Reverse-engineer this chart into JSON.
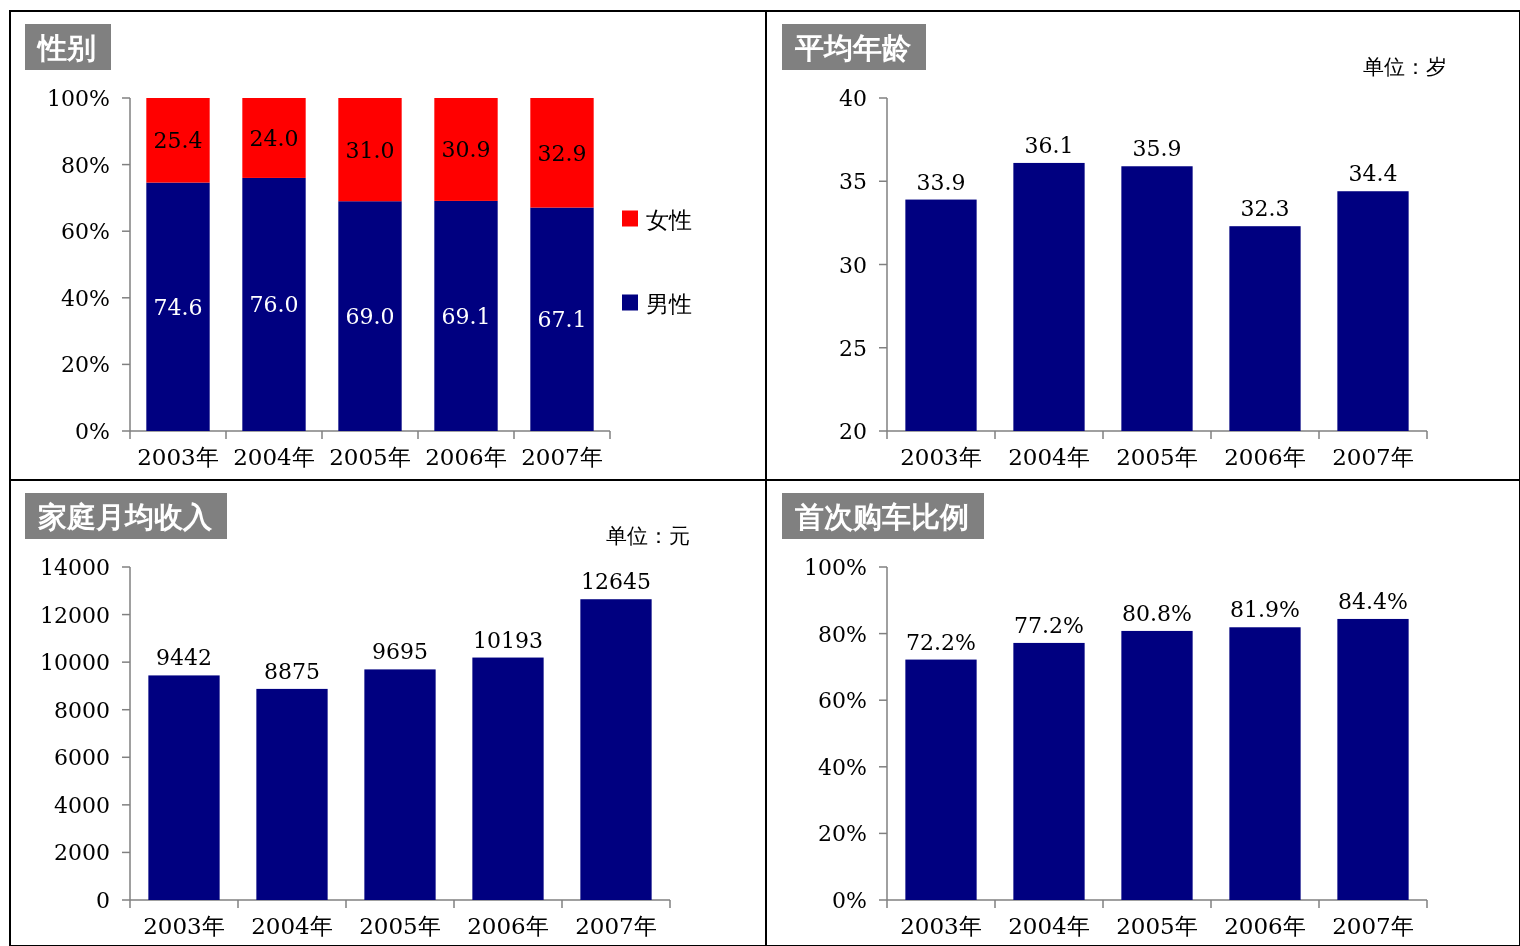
{
  "chart_data": [
    {
      "type": "bar",
      "title": "性别",
      "categories": [
        "2003年",
        "2004年",
        "2005年",
        "2006年",
        "2007年"
      ],
      "stacked": true,
      "legend": "right",
      "series": [
        {
          "name": "男性",
          "color": "#000080",
          "values": [
            74.6,
            76.0,
            69.0,
            69.1,
            67.1
          ],
          "value_labels": [
            "74.6",
            "76.0",
            "69.0",
            "69.1",
            "67.1"
          ]
        },
        {
          "name": "女性",
          "color": "#ff0000",
          "values": [
            25.4,
            24.0,
            31.0,
            30.9,
            32.9
          ],
          "value_labels": [
            "25.4",
            "24.0",
            "31.0",
            "30.9",
            "32.9"
          ]
        }
      ],
      "ylim": [
        0,
        100
      ],
      "yticks": [
        {
          "value": 0,
          "label": "0%"
        },
        {
          "value": 20,
          "label": "20%"
        },
        {
          "value": 40,
          "label": "40%"
        },
        {
          "value": 60,
          "label": "60%"
        },
        {
          "value": 80,
          "label": "80%"
        },
        {
          "value": 100,
          "label": "100%"
        }
      ]
    },
    {
      "type": "bar",
      "title": "平均年龄",
      "annotations": [
        "单位：岁"
      ],
      "categories": [
        "2003年",
        "2004年",
        "2005年",
        "2006年",
        "2007年"
      ],
      "color": "#000080",
      "values": [
        33.9,
        36.1,
        35.9,
        32.3,
        34.4
      ],
      "ylim": [
        20,
        40
      ],
      "yticks": [
        20,
        25,
        30,
        35,
        40
      ],
      "data_labels": true
    },
    {
      "type": "bar",
      "title": "家庭月均收入",
      "annotations": [
        "单位：元"
      ],
      "categories": [
        "2003年",
        "2004年",
        "2005年",
        "2006年",
        "2007年"
      ],
      "color": "#000080",
      "values": [
        9442,
        8875,
        9695,
        10193,
        12645
      ],
      "ylim": [
        0,
        14000
      ],
      "yticks": [
        0,
        2000,
        4000,
        6000,
        8000,
        10000,
        12000,
        14000
      ],
      "data_labels": true
    },
    {
      "type": "bar",
      "title": "首次购车比例",
      "categories": [
        "2003年",
        "2004年",
        "2005年",
        "2006年",
        "2007年"
      ],
      "color": "#000080",
      "values": [
        72.2,
        77.2,
        80.8,
        81.9,
        84.4
      ],
      "value_labels": [
        "72.2%",
        "77.2%",
        "80.8%",
        "81.9%",
        "84.4%"
      ],
      "ylim": [
        0,
        100
      ],
      "yticks": [
        {
          "value": 0,
          "label": "0%"
        },
        {
          "value": 20,
          "label": "20%"
        },
        {
          "value": 40,
          "label": "40%"
        },
        {
          "value": 60,
          "label": "60%"
        },
        {
          "value": 80,
          "label": "80%"
        },
        {
          "value": 100,
          "label": "100%"
        }
      ]
    }
  ]
}
